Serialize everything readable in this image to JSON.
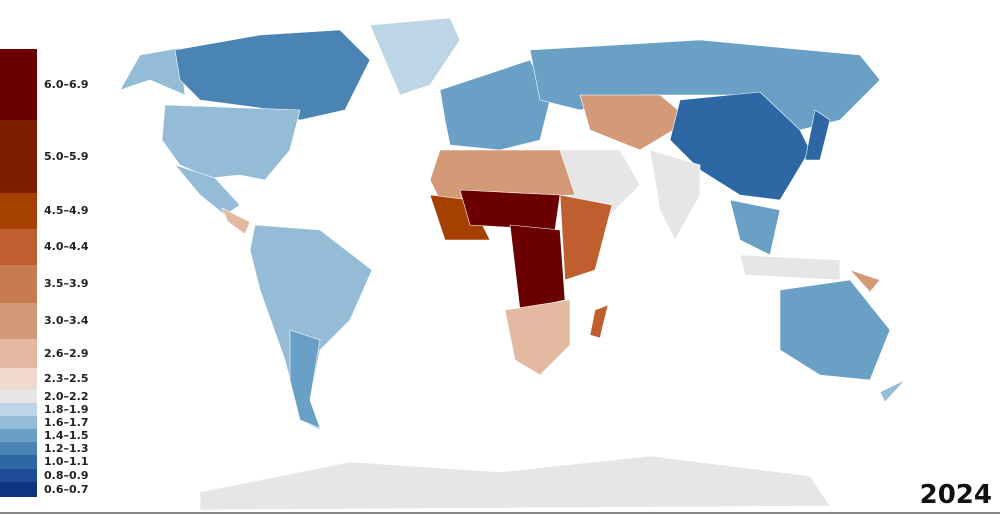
{
  "year": "2024",
  "legend": {
    "bins": [
      {
        "label": "6.0–6.9",
        "color": "#6b0000"
      },
      {
        "label": "5.0–5.9",
        "color": "#7f1d00"
      },
      {
        "label": "4.5–4.9",
        "color": "#a64000"
      },
      {
        "label": "4.0–4.4",
        "color": "#bf5f30"
      },
      {
        "label": "3.5–3.9",
        "color": "#c87a50"
      },
      {
        "label": "3.0–3.4",
        "color": "#d39a78"
      },
      {
        "label": "2.6–2.9",
        "color": "#e2b8a0"
      },
      {
        "label": "2.3–2.5",
        "color": "#efd8cc"
      },
      {
        "label": "2.0–2.2",
        "color": "#e6e6e6"
      },
      {
        "label": "1.8–1.9",
        "color": "#bcd6e6"
      },
      {
        "label": "1.6–1.7",
        "color": "#94bcd6"
      },
      {
        "label": "1.4–1.5",
        "color": "#6a9fc6"
      },
      {
        "label": "1.2–1.3",
        "color": "#4a84b4"
      },
      {
        "label": "1.0–1.1",
        "color": "#2e68a4"
      },
      {
        "label": "0.8–0.9",
        "color": "#1c4c94"
      },
      {
        "label": "0.6–0.7",
        "color": "#0d3480"
      }
    ]
  }
}
